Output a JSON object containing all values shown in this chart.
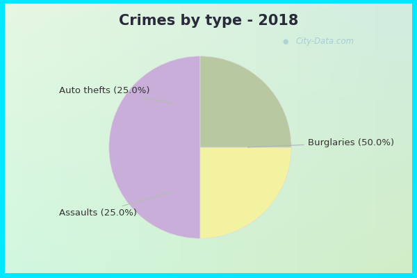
{
  "title": "Crimes by type - 2018",
  "slices": [
    {
      "label": "Burglaries (50.0%)",
      "value": 50.0,
      "color": "#c8aed8"
    },
    {
      "label": "Auto thefts (25.0%)",
      "value": 25.0,
      "color": "#f2f2a0"
    },
    {
      "label": "Assaults (25.0%)",
      "value": 25.0,
      "color": "#b8c8a0"
    }
  ],
  "start_angle": 90,
  "border_color": "#00e8ff",
  "bg_color_topleft": "#d0ede8",
  "bg_color_bottomright": "#d8f0d0",
  "title_fontsize": 15,
  "title_fontweight": "bold",
  "title_color": "#2a2a3a",
  "label_fontsize": 9.5,
  "label_color": "#333333",
  "watermark": "City-Data.com",
  "watermark_color": "#a0c8d4",
  "border_width": 7
}
